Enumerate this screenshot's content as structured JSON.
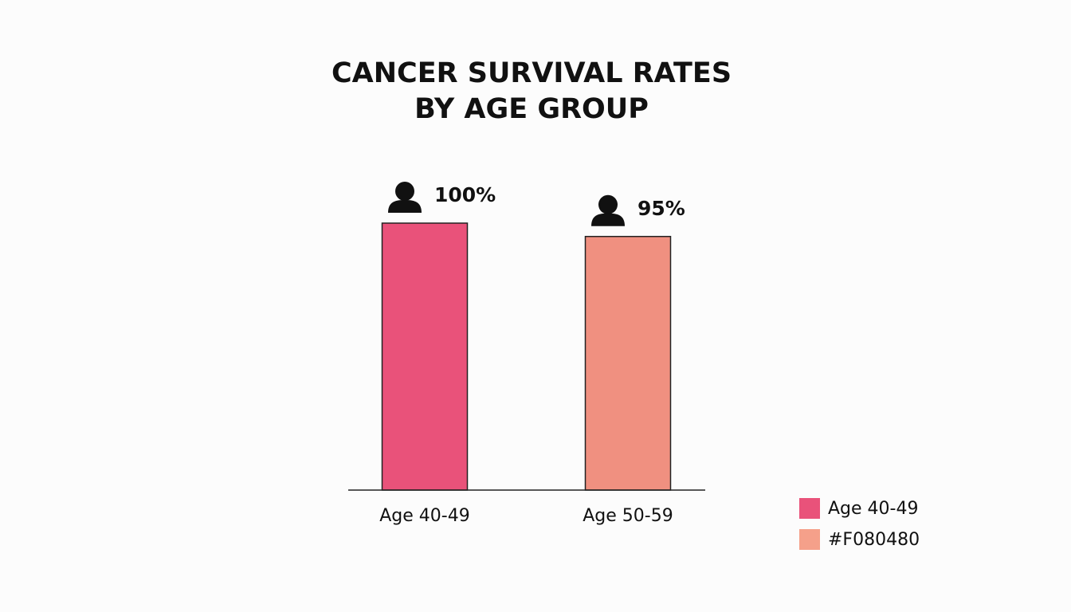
{
  "chart_data": {
    "type": "bar",
    "title_lines": [
      "CANCER SURVIVAL RATES",
      "BY AGE GROUP"
    ],
    "categories": [
      "Age 40-49",
      "Age 50-59"
    ],
    "values": [
      100,
      95
    ],
    "value_labels": [
      "100%",
      "95%"
    ],
    "colors": [
      "#e9527a",
      "#f09080"
    ],
    "ylim": [
      0,
      100
    ],
    "icon": "person-icon",
    "legend": {
      "position": "bottom-right",
      "entries": [
        {
          "label": "Age 40-49",
          "color": "#e9527a"
        },
        {
          "label": "#F080480",
          "color": "#f5a08a"
        }
      ]
    }
  }
}
